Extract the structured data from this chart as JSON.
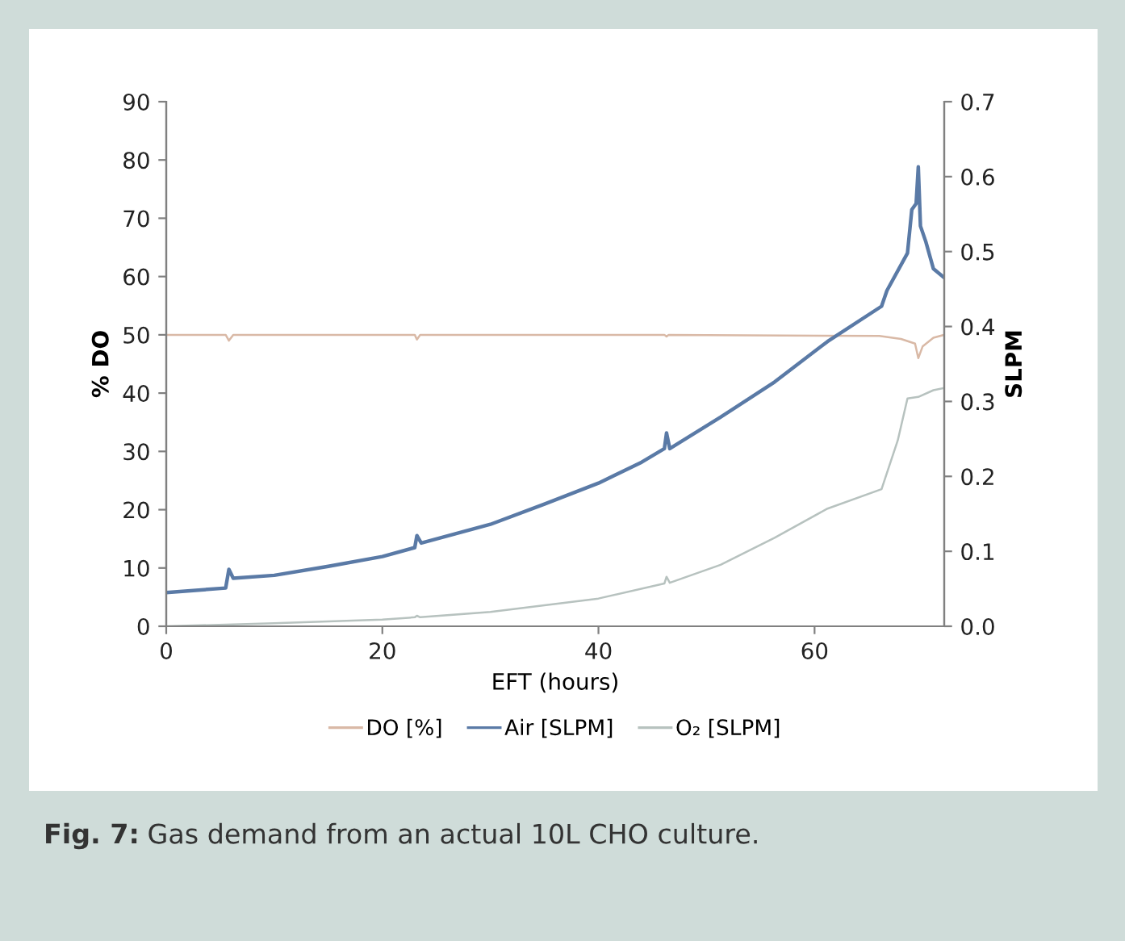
{
  "chart_data": {
    "type": "line",
    "xlabel": "EFT (hours)",
    "ylabel": "% DO",
    "y2label": "SLPM",
    "xlim": [
      0,
      72
    ],
    "xticks": [
      0,
      20,
      40,
      60
    ],
    "ylim": [
      0,
      90
    ],
    "yticks": [
      0,
      10,
      20,
      30,
      40,
      50,
      60,
      70,
      80,
      90
    ],
    "y2lim": [
      0,
      0.7
    ],
    "y2ticks": [
      {
        "value": 0,
        "label": "0.0"
      },
      {
        "value": 0.1,
        "label": "0.1"
      },
      {
        "value": 0.2,
        "label": "0.2"
      },
      {
        "value": 0.3,
        "label": "0.3"
      },
      {
        "value": 0.4,
        "label": "0.4"
      },
      {
        "value": 0.5,
        "label": "0.5"
      },
      {
        "value": 0.6,
        "label": "0.6"
      },
      {
        "value": 0.7,
        "label": "0.7"
      }
    ],
    "grid": false,
    "legend": "bottom",
    "marker": "none",
    "line_style": "solid",
    "series": [
      {
        "name": "DO [%]",
        "color": "#d9b9a6",
        "x": [
          0,
          5.5,
          5.8,
          6.2,
          23,
          23.2,
          23.5,
          46.1,
          46.3,
          46.5,
          66,
          68,
          69.3,
          69.6,
          70,
          71,
          72
        ],
        "values": [
          50,
          50,
          49,
          50,
          50,
          49.2,
          50,
          50,
          49.7,
          50,
          49.8,
          49.3,
          48.5,
          46,
          48,
          49.5,
          50
        ]
      },
      {
        "name": "Air [SLPM]",
        "color": "#5a7aa6",
        "axis": "y2",
        "x": [
          0,
          5.5,
          5.8,
          6.2,
          10,
          15,
          20,
          23,
          23.2,
          23.6,
          30,
          35,
          40,
          44,
          46.1,
          46.3,
          46.6,
          51.3,
          56.3,
          61.2,
          66.2,
          66.7,
          68.6,
          69.0,
          69.4,
          69.6,
          69.8,
          70.3,
          71.0,
          72
        ],
        "values": [
          0.045,
          0.051,
          0.076,
          0.064,
          0.068,
          0.08,
          0.093,
          0.105,
          0.121,
          0.111,
          0.136,
          0.163,
          0.191,
          0.219,
          0.237,
          0.258,
          0.237,
          0.279,
          0.326,
          0.38,
          0.427,
          0.448,
          0.498,
          0.556,
          0.564,
          0.613,
          0.534,
          0.513,
          0.477,
          0.465
        ]
      },
      {
        "name": "O₂ [SLPM]",
        "color": "#b7c2bf",
        "axis": "y2",
        "x": [
          0,
          10,
          20,
          23,
          23.2,
          23.5,
          30,
          40,
          46.1,
          46.3,
          46.6,
          51.3,
          56.3,
          61.2,
          66.2,
          67.7,
          68.6,
          69.6,
          71,
          72
        ],
        "values": [
          0.0,
          0.004,
          0.009,
          0.012,
          0.014,
          0.012,
          0.019,
          0.037,
          0.057,
          0.066,
          0.058,
          0.082,
          0.118,
          0.157,
          0.183,
          0.248,
          0.304,
          0.306,
          0.315,
          0.318
        ]
      }
    ],
    "annotations": [
      "Fig. 7:",
      "Gas demand from an actual 10L CHO culture."
    ]
  }
}
